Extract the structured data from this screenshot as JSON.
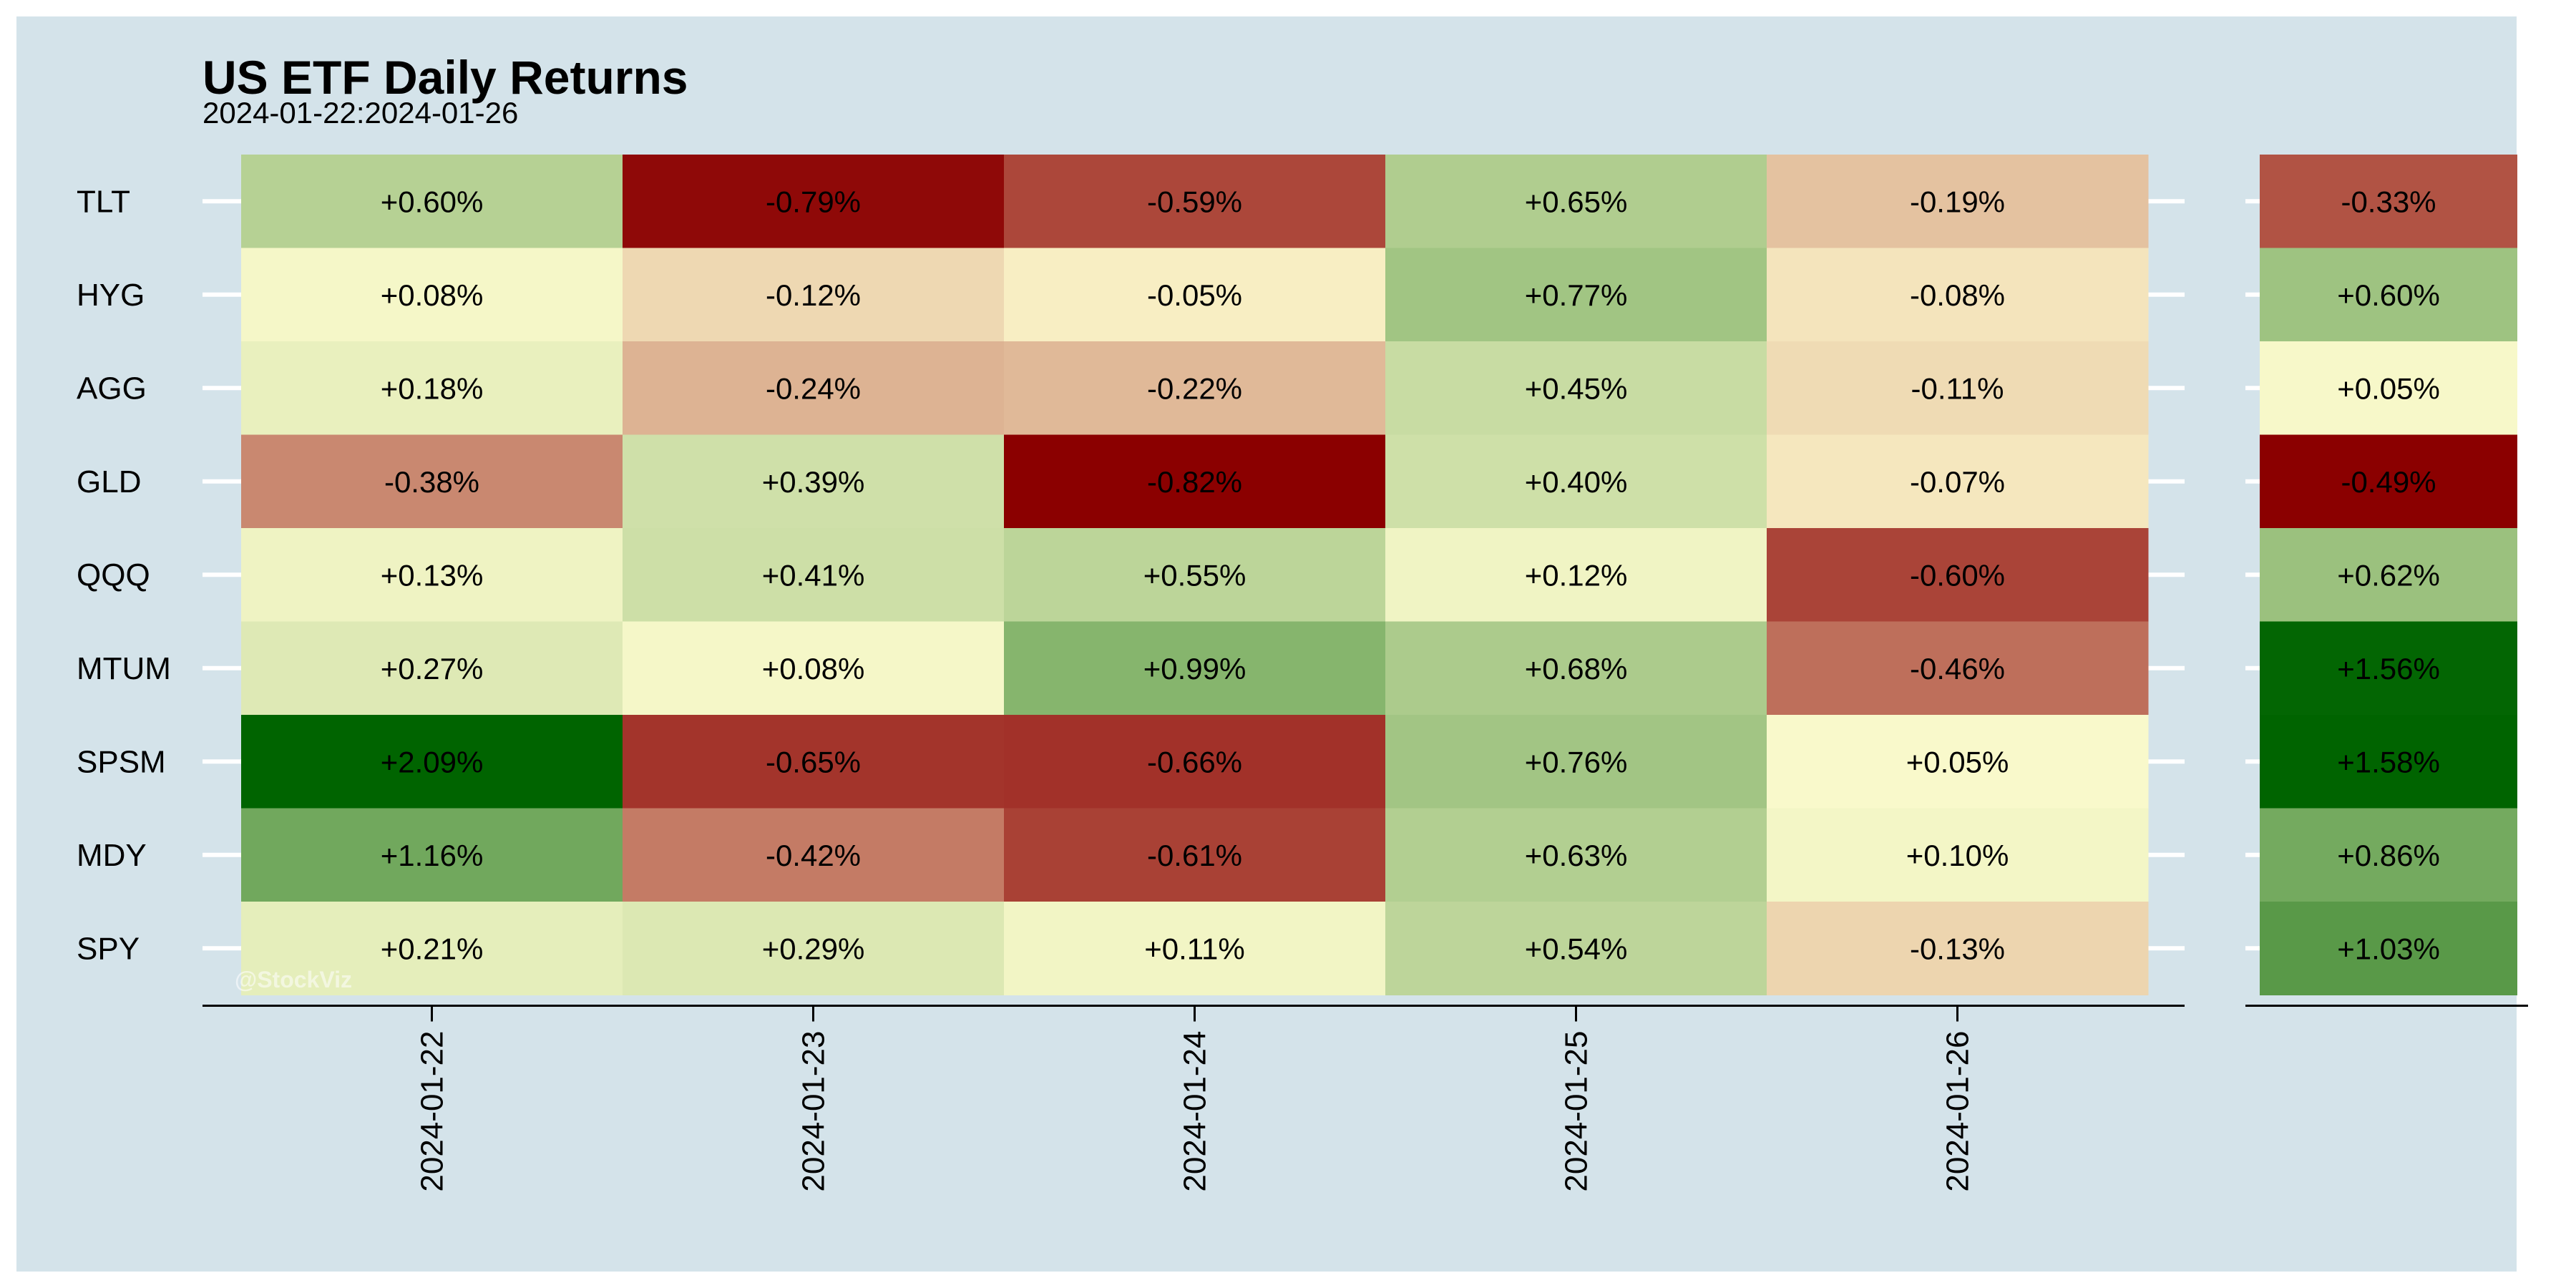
{
  "chart_data": {
    "type": "heatmap",
    "title": "US ETF Daily Returns",
    "subtitle": "2024-01-22:2024-01-26",
    "watermark": "@StockViz",
    "rows": [
      "TLT",
      "HYG",
      "AGG",
      "GLD",
      "QQQ",
      "MTUM",
      "SPSM",
      "MDY",
      "SPY"
    ],
    "columns": [
      "2024-01-22",
      "2024-01-23",
      "2024-01-24",
      "2024-01-25",
      "2024-01-26"
    ],
    "values": [
      [
        0.6,
        -0.79,
        -0.59,
        0.65,
        -0.19
      ],
      [
        0.08,
        -0.12,
        -0.05,
        0.77,
        -0.08
      ],
      [
        0.18,
        -0.24,
        -0.22,
        0.45,
        -0.11
      ],
      [
        -0.38,
        0.39,
        -0.82,
        0.4,
        -0.07
      ],
      [
        0.13,
        0.41,
        0.55,
        0.12,
        -0.6
      ],
      [
        0.27,
        0.08,
        0.99,
        0.68,
        -0.46
      ],
      [
        2.09,
        -0.65,
        -0.66,
        0.76,
        0.05
      ],
      [
        1.16,
        -0.42,
        -0.61,
        0.63,
        0.1
      ],
      [
        0.21,
        0.29,
        0.11,
        0.54,
        -0.13
      ]
    ],
    "totals": [
      -0.33,
      0.6,
      0.05,
      -0.49,
      0.62,
      1.56,
      1.58,
      0.86,
      1.03
    ],
    "unit": "%",
    "colors": {
      "negative": "#8b0000",
      "neutral": "#fffdd0",
      "positive": "#006400"
    },
    "legend": "none"
  }
}
